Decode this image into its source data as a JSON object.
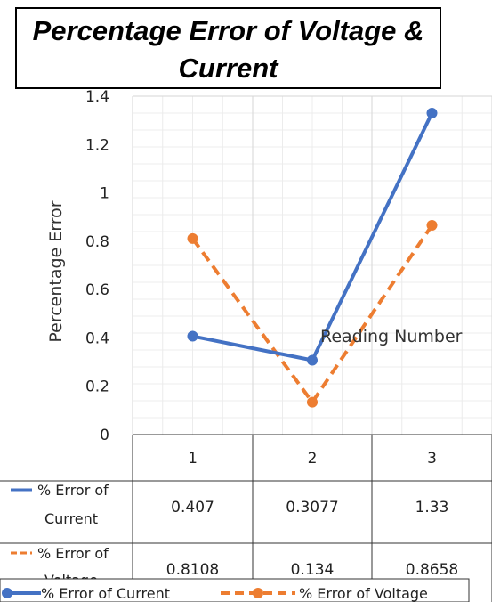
{
  "chart_data": {
    "type": "line",
    "title": "Percentage Error of Voltage & Current",
    "ylabel": "Percentage Error",
    "xlabel": "Reading Number",
    "categories": [
      "1",
      "2",
      "3"
    ],
    "ylim": [
      0,
      1.4
    ],
    "yticks": [
      "0",
      "0.2",
      "0.4",
      "0.6",
      "0.8",
      "1",
      "1.2",
      "1.4"
    ],
    "grid": true,
    "legend_position": "bottom",
    "data_table": true,
    "series": [
      {
        "name": "% Error of Current",
        "values": [
          0.407,
          0.3077,
          1.33
        ],
        "value_labels": [
          "0.407",
          "0.3077",
          "1.33"
        ],
        "color": "#4472C4",
        "dash": "solid"
      },
      {
        "name": "% Error of Voltage",
        "values": [
          0.8108,
          0.134,
          0.8658
        ],
        "value_labels": [
          "0.8108",
          "0.134",
          "0.8658"
        ],
        "color": "#ED7D31",
        "dash": "dashed"
      }
    ]
  },
  "table_row_labels": [
    [
      "% Error of",
      "Current"
    ],
    [
      "% Error of",
      "Voltage"
    ]
  ]
}
